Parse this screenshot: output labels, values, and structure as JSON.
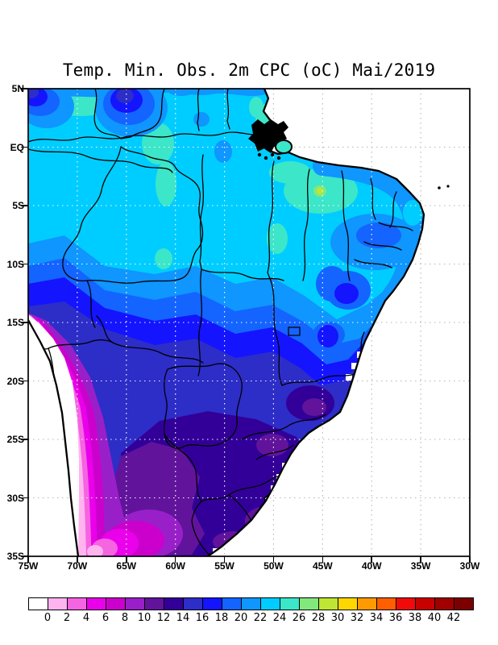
{
  "title": "Temp. Min. Obs. 2m CPC (oC) Mai/2019",
  "map": {
    "lat_labels": [
      "5N",
      "EQ",
      "5S",
      "10S",
      "15S",
      "20S",
      "25S",
      "30S",
      "35S"
    ],
    "lon_labels": [
      "75W",
      "70W",
      "65W",
      "60W",
      "55W",
      "50W",
      "45W",
      "40W",
      "35W",
      "30W"
    ]
  },
  "colorbar": {
    "tick_labels": [
      "0",
      "2",
      "4",
      "6",
      "8",
      "10",
      "12",
      "14",
      "16",
      "18",
      "20",
      "22",
      "24",
      "26",
      "28",
      "30",
      "32",
      "34",
      "36",
      "38",
      "40",
      "42"
    ],
    "colors": [
      "#FFFFFF",
      "#FFB4F0",
      "#F564E1",
      "#EB00EB",
      "#CC00CC",
      "#9920C8",
      "#61149B",
      "#320099",
      "#2D2DC8",
      "#1414FF",
      "#1464FF",
      "#0F96FF",
      "#00CDFF",
      "#3CE6C8",
      "#82E87D",
      "#BEE632",
      "#FFD700",
      "#FF9B00",
      "#FF5F00",
      "#F00A0A",
      "#C80000",
      "#A00000",
      "#7D0000"
    ]
  },
  "chart_data": {
    "type": "heatmap",
    "title": "Temp. Min. Obs. 2m CPC (oC) Mai/2019",
    "unit": "oC",
    "x_ticks": [
      "75W",
      "70W",
      "65W",
      "60W",
      "55W",
      "50W",
      "45W",
      "40W",
      "35W",
      "30W"
    ],
    "y_ticks": [
      "5N",
      "EQ",
      "5S",
      "10S",
      "15S",
      "20S",
      "25S",
      "30S",
      "35S"
    ],
    "colorbar_values": [
      0,
      2,
      4,
      6,
      8,
      10,
      12,
      14,
      16,
      18,
      20,
      22,
      24,
      26,
      28,
      30,
      32,
      34,
      36,
      38,
      40,
      42
    ],
    "legend_position": "bottom",
    "grid": "dotted"
  }
}
